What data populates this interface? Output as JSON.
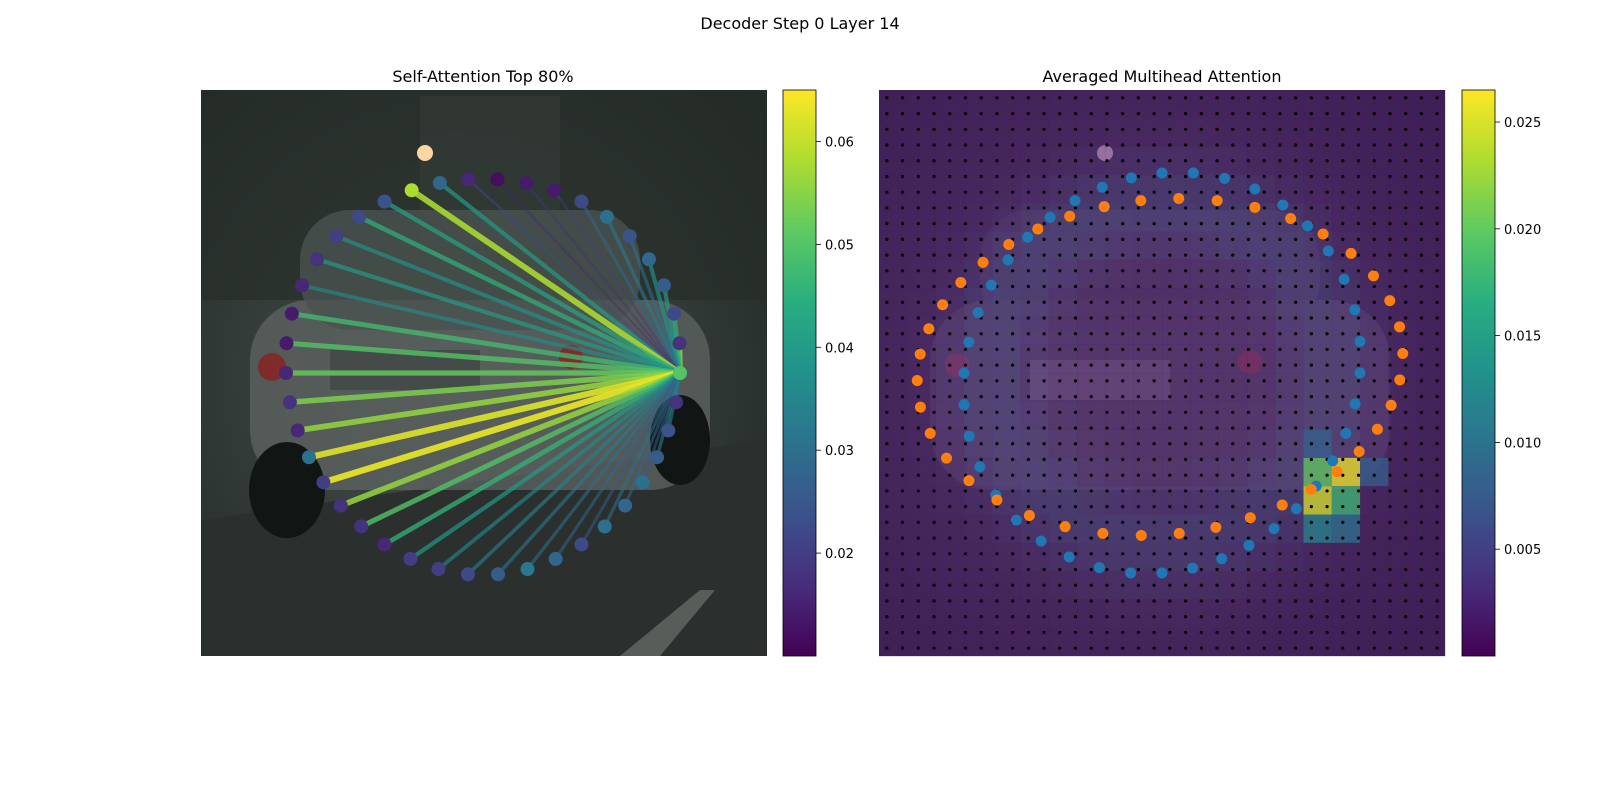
{
  "figure": {
    "suptitle": "Decoder Step 0 Layer 14"
  },
  "chart_data": [
    {
      "type": "scatter",
      "panel": "left",
      "title": "Self-Attention Top 80%",
      "description_kind": "attention-graph over contour points on car image",
      "points": 42,
      "query_point_index": 0,
      "colormap": "viridis",
      "colorbar": {
        "ticks": [
          0.02,
          0.03,
          0.04,
          0.05,
          0.06
        ],
        "tick_labels": [
          "0.02",
          "0.03",
          "0.04",
          "0.05",
          "0.06"
        ],
        "range": [
          0.01,
          0.065
        ]
      },
      "point_values": [
        0.05,
        0.018,
        0.022,
        0.026,
        0.028,
        0.024,
        0.03,
        0.022,
        0.014,
        0.014,
        0.012,
        0.016,
        0.028,
        0.058,
        0.024,
        0.022,
        0.02,
        0.018,
        0.016,
        0.014,
        0.014,
        0.016,
        0.018,
        0.016,
        0.03,
        0.02,
        0.018,
        0.018,
        0.016,
        0.02,
        0.02,
        0.022,
        0.026,
        0.032,
        0.028,
        0.022,
        0.03,
        0.028,
        0.03,
        0.026,
        0.024,
        0.018
      ],
      "edge_weights": [
        0.05,
        0.055,
        0.045,
        0.04,
        0.038,
        0.03,
        0.032,
        0.028,
        0.02,
        0.018,
        0.016,
        0.022,
        0.04,
        0.058,
        0.042,
        0.045,
        0.038,
        0.04,
        0.036,
        0.048,
        0.05,
        0.052,
        0.054,
        0.056,
        0.062,
        0.063,
        0.056,
        0.05,
        0.046,
        0.04,
        0.036,
        0.034,
        0.032,
        0.03,
        0.028,
        0.026,
        0.03,
        0.028,
        0.026,
        0.032,
        0.034,
        0.03
      ]
    },
    {
      "type": "heatmap",
      "panel": "right",
      "title": "Averaged Multihead Attention",
      "colormap": "viridis",
      "grid_size": [
        20,
        20
      ],
      "colorbar": {
        "ticks": [
          0.005,
          0.01,
          0.015,
          0.02,
          0.025
        ],
        "tick_labels": [
          "0.005",
          "0.010",
          "0.015",
          "0.020",
          "0.025"
        ],
        "range": [
          0.0,
          0.0265
        ]
      },
      "hot_cells": [
        {
          "row": 13,
          "col": 15,
          "value": 0.02
        },
        {
          "row": 13,
          "col": 16,
          "value": 0.026
        },
        {
          "row": 14,
          "col": 15,
          "value": 0.025
        },
        {
          "row": 14,
          "col": 16,
          "value": 0.018
        },
        {
          "row": 15,
          "col": 15,
          "value": 0.012
        },
        {
          "row": 15,
          "col": 16,
          "value": 0.01
        },
        {
          "row": 12,
          "col": 15,
          "value": 0.008
        },
        {
          "row": 13,
          "col": 17,
          "value": 0.008
        }
      ],
      "series": [
        {
          "name": "",
          "color": "#1f77b4",
          "count": 40
        },
        {
          "name": "",
          "color": "#ff7f0e",
          "count": 40
        }
      ]
    }
  ],
  "colors": {
    "series_blue": "#1f77b4",
    "series_orange": "#ff7f0e",
    "image_dark": "#2a2f2a"
  }
}
